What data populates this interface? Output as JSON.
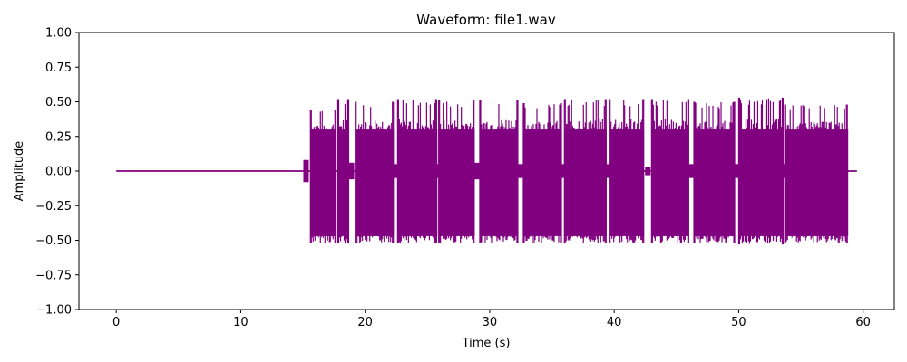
{
  "chart_data": {
    "type": "line",
    "title": "Waveform: file1.wav",
    "xlabel": "Time (s)",
    "ylabel": "Amplitude",
    "xlim": [
      -3,
      62.5
    ],
    "ylim": [
      -1.0,
      1.0
    ],
    "xticks": [
      0,
      10,
      20,
      30,
      40,
      50,
      60
    ],
    "xtick_labels": [
      "0",
      "10",
      "20",
      "30",
      "40",
      "50",
      "60"
    ],
    "yticks": [
      -1.0,
      -0.75,
      -0.5,
      -0.25,
      0.0,
      0.25,
      0.5,
      0.75,
      1.0
    ],
    "ytick_labels": [
      "−1.00",
      "−0.75",
      "−0.50",
      "−0.25",
      "0.00",
      "0.25",
      "0.50",
      "0.75",
      "1.00"
    ],
    "grid": false,
    "series": [
      {
        "name": "file1.wav",
        "color": "#800080",
        "duration": 59.5,
        "silence": [
          [
            0,
            15.1
          ],
          [
            59.0,
            59.5
          ]
        ],
        "bursts": [
          {
            "start": 15.6,
            "end": 17.7,
            "max": 0.44,
            "min": -0.52
          },
          {
            "start": 17.8,
            "end": 18.7,
            "max": 0.52,
            "min": -0.52
          },
          {
            "start": 19.2,
            "end": 22.3,
            "max": 0.5,
            "min": -0.52
          },
          {
            "start": 22.6,
            "end": 25.8,
            "max": 0.52,
            "min": -0.52
          },
          {
            "start": 25.9,
            "end": 28.8,
            "max": 0.51,
            "min": -0.52
          },
          {
            "start": 29.2,
            "end": 32.3,
            "max": 0.51,
            "min": -0.52
          },
          {
            "start": 32.7,
            "end": 35.8,
            "max": 0.49,
            "min": -0.52
          },
          {
            "start": 36.0,
            "end": 39.4,
            "max": 0.52,
            "min": -0.52
          },
          {
            "start": 39.6,
            "end": 42.4,
            "max": 0.52,
            "min": -0.52
          },
          {
            "start": 43.0,
            "end": 46.0,
            "max": 0.52,
            "min": -0.52
          },
          {
            "start": 46.4,
            "end": 49.7,
            "max": 0.5,
            "min": -0.52
          },
          {
            "start": 50.0,
            "end": 53.6,
            "max": 0.53,
            "min": -0.53
          },
          {
            "start": 53.7,
            "end": 58.8,
            "max": 0.48,
            "min": -0.52
          }
        ]
      }
    ]
  }
}
